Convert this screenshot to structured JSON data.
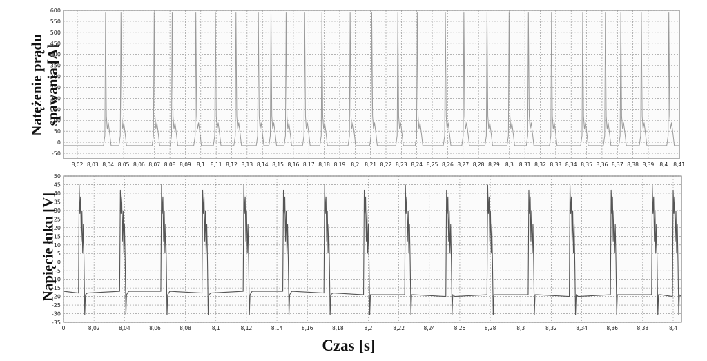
{
  "chart_data": [
    {
      "type": "line",
      "ylabel": [
        "Natężenie prądu",
        "spawania [A]"
      ],
      "xlabel": "",
      "ylim": [
        -75,
        600
      ],
      "y_ticks": [
        600,
        550,
        500,
        450,
        400,
        350,
        300,
        250,
        200,
        150,
        100,
        50,
        0,
        -50
      ],
      "x_tick_labels": [
        "8,02",
        "8,03",
        "8,04",
        "8,05",
        "8,06",
        "8,07",
        "8,08",
        "8,09",
        "8,1",
        "8,11",
        "8,12",
        "8,13",
        "8,14",
        "8,15",
        "8,16",
        "8,17",
        "8,18",
        "8,19",
        "8,2",
        "8,21",
        "8,22",
        "8,23",
        "8,24",
        "8,25",
        "8,26",
        "8,27",
        "8,28",
        "8,29",
        "8,3",
        "8,31",
        "8,32",
        "8,33",
        "8,34",
        "8,35",
        "8,36",
        "8,37",
        "8,38",
        "8,39",
        "8,4",
        "8,41"
      ],
      "xlim": [
        8.01,
        8.41
      ],
      "grid": true,
      "series": [
        {
          "color": "#9a9a9a",
          "pulse_times": [
            8.0383,
            8.0483,
            8.0698,
            8.0815,
            8.0968,
            8.1095,
            8.1228,
            8.1373,
            8.1455,
            8.1553,
            8.1673,
            8.1785,
            8.1968,
            8.2108,
            8.2277,
            8.2403,
            8.2585,
            8.2705,
            8.2855,
            8.2998,
            8.3123,
            8.3273,
            8.3475,
            8.3622,
            8.3722,
            8.3855,
            8.4033
          ],
          "peak_current": 590,
          "base_current": -15
        }
      ]
    },
    {
      "type": "line",
      "ylabel": "Napięcie łuku [V]",
      "xlabel": "Czas [s]",
      "ylim": [
        -35,
        50
      ],
      "y_ticks": [
        50,
        45,
        40,
        35,
        30,
        25,
        20,
        15,
        10,
        5,
        0,
        -5,
        -10,
        -15,
        -20,
        -25,
        -30,
        -35
      ],
      "x_tick_labels": [
        "0",
        "8,02",
        "8,04",
        "8,06",
        "8,08",
        "8,1",
        "8,12",
        "8,14",
        "8,16",
        "8,18",
        "8,2",
        "8,22",
        "8,24",
        "8,26",
        "8,28",
        "8,3",
        "8,32",
        "8,34",
        "8,36",
        "8,38",
        "8,4"
      ],
      "xlim": [
        8.0,
        8.404
      ],
      "grid": true,
      "series": [
        {
          "color": "#555555",
          "pulse_times": [
            8.0103,
            8.0373,
            8.0643,
            8.0913,
            8.1183,
            8.1443,
            8.1713,
            8.1973,
            8.2243,
            8.2513,
            8.2783,
            8.3053,
            8.3323,
            8.3593,
            8.3863,
            8.4
          ],
          "peak_voltage": 45,
          "base_voltage": -17
        }
      ]
    }
  ]
}
